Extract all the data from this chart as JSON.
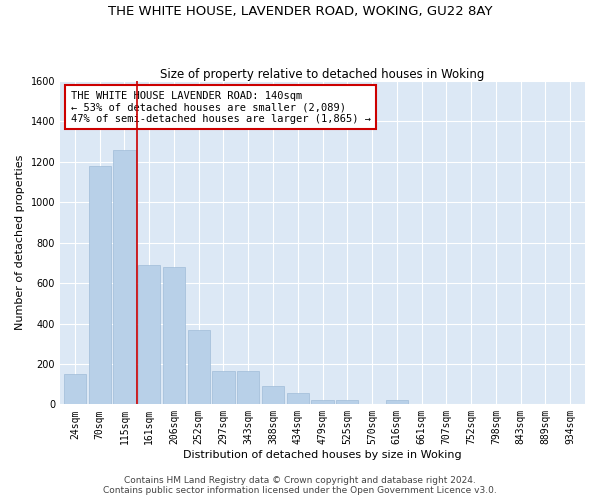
{
  "title_line1": "THE WHITE HOUSE, LAVENDER ROAD, WOKING, GU22 8AY",
  "title_line2": "Size of property relative to detached houses in Woking",
  "xlabel": "Distribution of detached houses by size in Woking",
  "ylabel": "Number of detached properties",
  "categories": [
    "24sqm",
    "70sqm",
    "115sqm",
    "161sqm",
    "206sqm",
    "252sqm",
    "297sqm",
    "343sqm",
    "388sqm",
    "434sqm",
    "479sqm",
    "525sqm",
    "570sqm",
    "616sqm",
    "661sqm",
    "707sqm",
    "752sqm",
    "798sqm",
    "843sqm",
    "889sqm",
    "934sqm"
  ],
  "values": [
    150,
    1180,
    1260,
    690,
    680,
    370,
    165,
    165,
    90,
    55,
    20,
    20,
    0,
    20,
    0,
    0,
    0,
    0,
    0,
    0,
    0
  ],
  "bar_color": "#b8d0e8",
  "bar_edge_color": "#a0bcd8",
  "vline_x": 2.5,
  "vline_color": "#cc0000",
  "annotation_text": "THE WHITE HOUSE LAVENDER ROAD: 140sqm\n← 53% of detached houses are smaller (2,089)\n47% of semi-detached houses are larger (1,865) →",
  "annotation_box_color": "#cc0000",
  "ylim": [
    0,
    1600
  ],
  "yticks": [
    0,
    200,
    400,
    600,
    800,
    1000,
    1200,
    1400,
    1600
  ],
  "background_color": "#dce8f5",
  "plot_background": "#ffffff",
  "footer_line1": "Contains HM Land Registry data © Crown copyright and database right 2024.",
  "footer_line2": "Contains public sector information licensed under the Open Government Licence v3.0.",
  "title_fontsize": 9.5,
  "subtitle_fontsize": 8.5,
  "axis_label_fontsize": 8,
  "tick_fontsize": 7,
  "annotation_fontsize": 7.5,
  "footer_fontsize": 6.5
}
